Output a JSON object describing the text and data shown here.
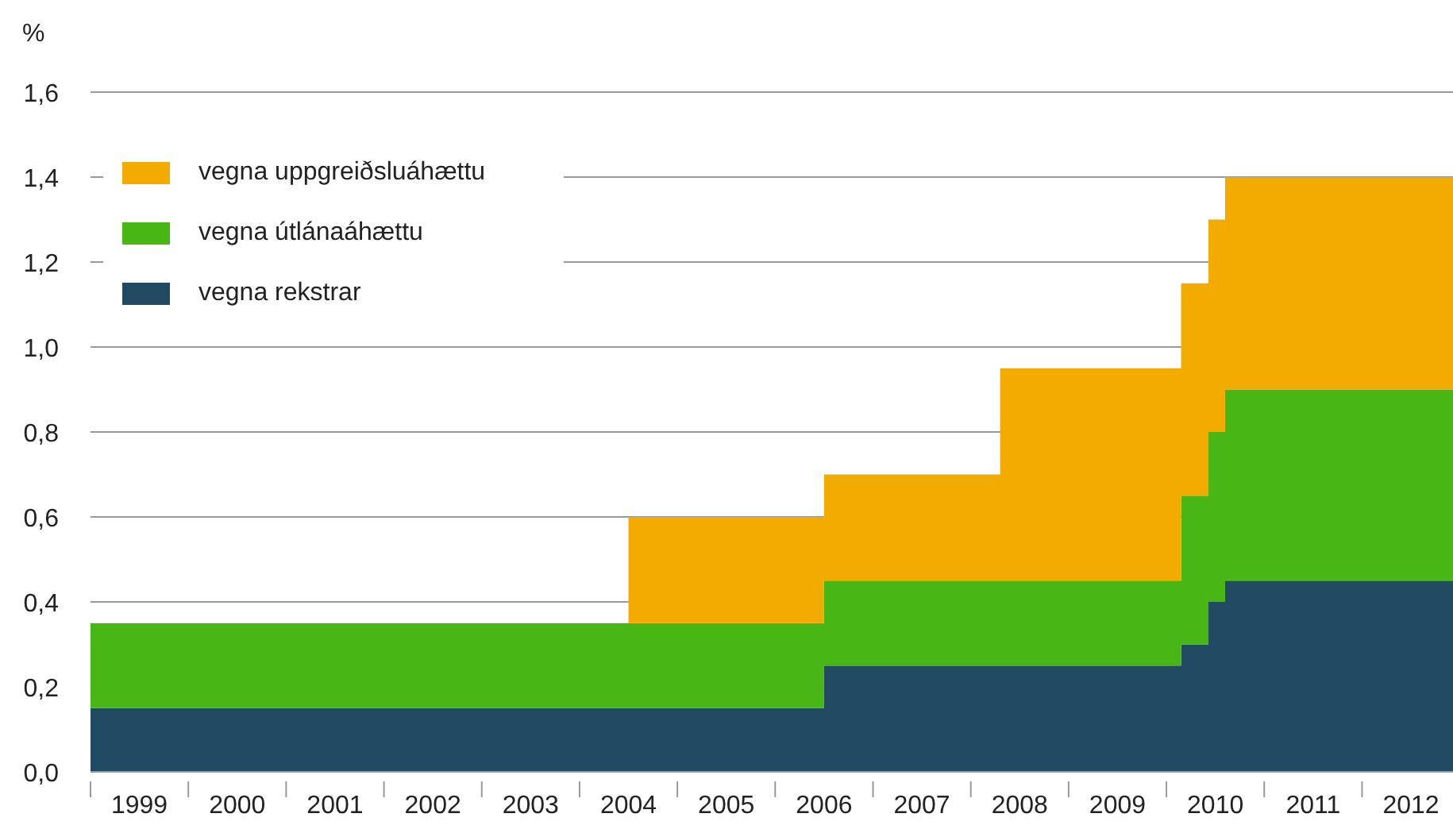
{
  "chart_data": {
    "type": "step",
    "stacked": true,
    "ylabel": "%",
    "x": [
      1999,
      2004.5,
      2006.5,
      2008.3,
      2010.15,
      2010.43,
      2010.6,
      2012.93
    ],
    "series": [
      {
        "name": "vegna rekstrar",
        "color": "#214a63",
        "type": "area",
        "values": [
          0.15,
          0.15,
          0.25,
          0.25,
          0.3,
          0.4,
          0.45,
          0.45
        ]
      },
      {
        "name": "vegna útlánaáhættu",
        "color": "#48b614",
        "type": "area",
        "values": [
          0.2,
          0.2,
          0.2,
          0.2,
          0.35,
          0.4,
          0.45,
          0.45
        ]
      },
      {
        "name": "vegna uppgreiðsluáhættu",
        "color": "#f2ac00",
        "type": "area",
        "values": [
          0,
          0.25,
          0.25,
          0.5,
          0.5,
          0.5,
          0.5,
          0.5
        ]
      }
    ],
    "xlim": [
      1999,
      2012.93
    ],
    "xticks": [
      {
        "value": 1999,
        "label": null
      },
      {
        "value": 1999.5,
        "label": "1999"
      },
      {
        "value": 2000,
        "label": null
      },
      {
        "value": 2000.5,
        "label": "2000"
      },
      {
        "value": 2001,
        "label": null
      },
      {
        "value": 2001.5,
        "label": "2001"
      },
      {
        "value": 2002,
        "label": null
      },
      {
        "value": 2002.5,
        "label": "2002"
      },
      {
        "value": 2003,
        "label": null
      },
      {
        "value": 2003.5,
        "label": "2003"
      },
      {
        "value": 2004,
        "label": null
      },
      {
        "value": 2004.5,
        "label": "2004"
      },
      {
        "value": 2005,
        "label": null
      },
      {
        "value": 2005.5,
        "label": "2005"
      },
      {
        "value": 2006,
        "label": null
      },
      {
        "value": 2006.5,
        "label": "2006"
      },
      {
        "value": 2007,
        "label": null
      },
      {
        "value": 2007.5,
        "label": "2007"
      },
      {
        "value": 2008,
        "label": null
      },
      {
        "value": 2008.5,
        "label": "2008"
      },
      {
        "value": 2009,
        "label": null
      },
      {
        "value": 2009.5,
        "label": "2009"
      },
      {
        "value": 2010,
        "label": null
      },
      {
        "value": 2010.5,
        "label": "2010"
      },
      {
        "value": 2011,
        "label": null
      },
      {
        "value": 2011.5,
        "label": "2011"
      },
      {
        "value": 2012,
        "label": null
      },
      {
        "value": 2012.5,
        "label": "2012"
      }
    ],
    "ylim": [
      0,
      1.6
    ],
    "yticks": [
      {
        "value": 0,
        "label": "0,0"
      },
      {
        "value": 0.2,
        "label": "0,2"
      },
      {
        "value": 0.4,
        "label": "0,4"
      },
      {
        "value": 0.6,
        "label": "0,6"
      },
      {
        "value": 0.8,
        "label": "0,8"
      },
      {
        "value": 1,
        "label": "1,0"
      },
      {
        "value": 1.2,
        "label": "1,2"
      },
      {
        "value": 1.4,
        "label": "1,4"
      },
      {
        "value": 1.6,
        "label": "1,6"
      }
    ],
    "grid": "y",
    "legend": "top left"
  }
}
